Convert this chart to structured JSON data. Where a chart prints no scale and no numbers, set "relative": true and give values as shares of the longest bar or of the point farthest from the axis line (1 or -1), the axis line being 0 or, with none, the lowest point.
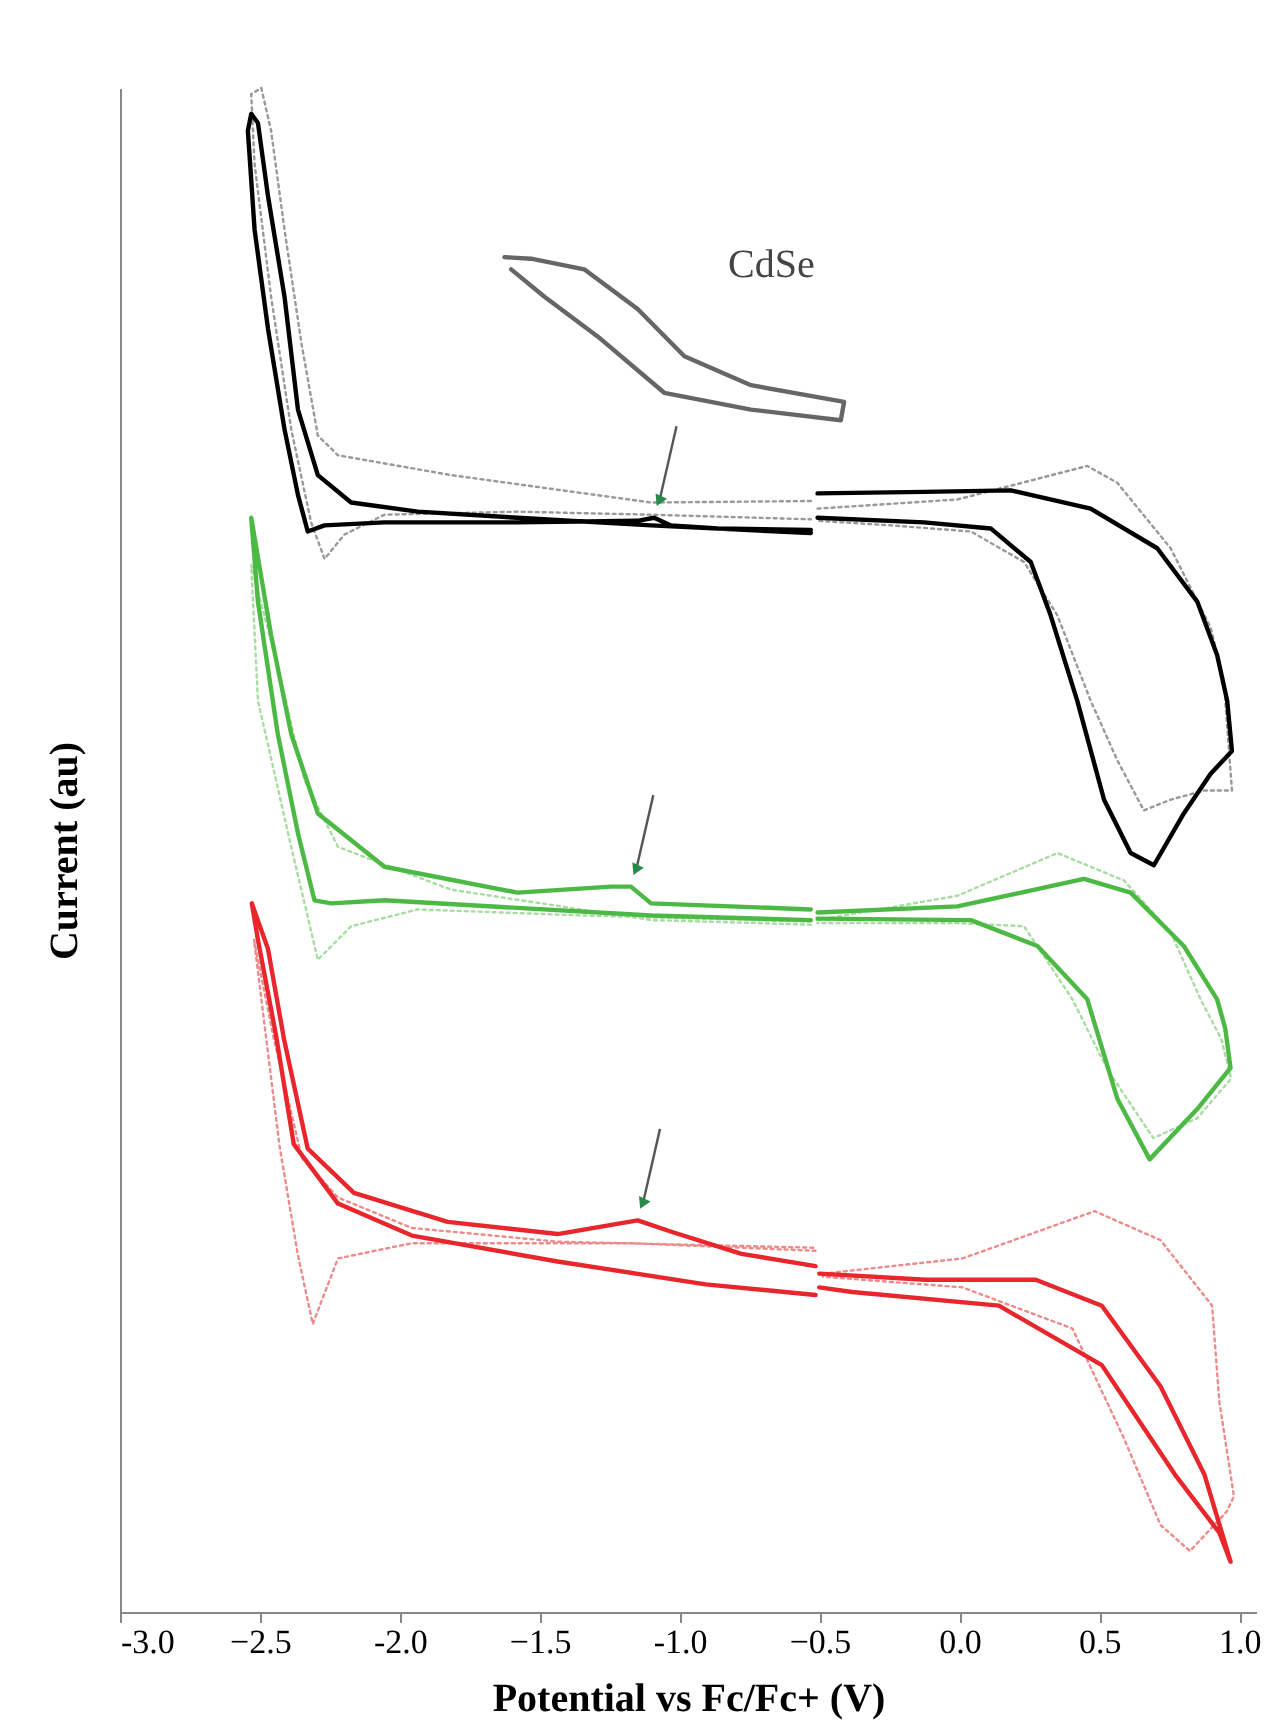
{
  "chart_data": {
    "type": "line",
    "relative": true,
    "xlabel": "Potential vs Fc/Fc+ (V)",
    "ylabel": "Current (au)",
    "xlim": [
      -3.0,
      1.06
    ],
    "xticks": [
      {
        "value": -3,
        "label": "-3.0"
      },
      -2.5,
      {
        "value": -2,
        "label": "-2.0"
      },
      -1.5,
      {
        "value": -1,
        "label": "-1.0"
      },
      -0.5,
      {
        "value": 0,
        "label": "0.0"
      },
      0.5,
      {
        "value": 1,
        "label": "1.0"
      }
    ],
    "grid": false,
    "legend": false,
    "marker": "none",
    "annotations": [
      "CdSe"
    ],
    "series": [
      {
        "color": "#999999",
        "line_style": "dotted",
        "x": [
          -0.531,
          -1.102,
          -1.817,
          -2.221,
          -2.293,
          -2.352,
          -2.412,
          -2.46,
          -2.495,
          -2.531,
          -2.519,
          -2.46,
          -2.388,
          -2.317,
          -2.269,
          -2.198,
          -2.055,
          -1.579,
          -1.102,
          -0.531,
          -0.52,
          -0.507,
          -0.007,
          0.457,
          0.564,
          0.755,
          0.898,
          0.945,
          0.974,
          0.874,
          0.755,
          0.659,
          0.564,
          0.469,
          0.35,
          0.231,
          0.041,
          -0.245,
          -0.507
        ],
        "values": [
          0.729,
          0.728,
          0.746,
          0.759,
          0.772,
          0.833,
          0.907,
          0.972,
          1,
          0.996,
          0.95,
          0.863,
          0.776,
          0.715,
          0.691,
          0.707,
          0.72,
          0.722,
          0.72,
          0.717,
          null,
          0.724,
          0.73,
          0.752,
          0.741,
          0.698,
          0.646,
          0.611,
          0.539,
          0.539,
          0.533,
          0.526,
          0.559,
          0.598,
          0.654,
          0.689,
          0.709,
          0.713,
          0.716
        ]
      },
      {
        "color": "#000000",
        "line_style": "solid",
        "x": [
          -0.531,
          -1.102,
          -1.579,
          -1.936,
          -2.174,
          -2.293,
          -2.364,
          -2.412,
          -2.471,
          -2.507,
          -2.531,
          -2.543,
          -2.519,
          -2.471,
          -2.412,
          -2.364,
          -2.329,
          -2.269,
          -2.055,
          -1.579,
          -1.15,
          -1.091,
          -1.031,
          -0.864,
          -0.531,
          -0.52,
          -0.507,
          -0.126,
          0.184,
          0.469,
          0.707,
          0.85,
          0.921,
          0.957,
          0.974,
          0.898,
          0.802,
          0.695,
          0.612,
          0.517,
          0.421,
          0.326,
          0.255,
          0.112,
          -0.126,
          -0.507
        ],
        "values": [
          0.708,
          0.713,
          0.718,
          0.722,
          0.728,
          0.746,
          0.789,
          0.863,
          0.929,
          0.977,
          0.983,
          0.972,
          0.907,
          0.842,
          0.776,
          0.733,
          0.709,
          0.713,
          0.715,
          0.715,
          0.716,
          0.718,
          0.713,
          0.711,
          0.71,
          null,
          0.734,
          0.735,
          0.736,
          0.724,
          0.698,
          0.663,
          0.628,
          0.598,
          0.565,
          0.55,
          0.524,
          0.49,
          0.498,
          0.533,
          0.598,
          0.654,
          0.689,
          0.711,
          0.715,
          0.718
        ]
      },
      {
        "color": "#666666",
        "line_style": "solid",
        "x": [
          -1.626,
          -1.531,
          -1.341,
          -1.15,
          -0.983,
          -0.745,
          -0.412,
          -0.424,
          -0.745,
          -1.055,
          -1.293,
          -1.483,
          -1.602
        ],
        "values": [
          0.889,
          0.888,
          0.881,
          0.855,
          0.824,
          0.805,
          0.794,
          0.782,
          0.789,
          0.8,
          0.837,
          0.863,
          0.881
        ]
      },
      {
        "color": "#a8dca2",
        "line_style": "dotted",
        "x": [
          -0.531,
          -1.102,
          -1.817,
          -2.221,
          -2.341,
          -2.436,
          -2.531,
          -2.507,
          -2.388,
          -2.293,
          -2.174,
          -1.936,
          -1.341,
          -0.531,
          -0.52,
          -0.507,
          -0.007,
          0.35,
          0.588,
          0.755,
          0.862,
          0.936,
          0.971,
          0.85,
          0.693,
          0.529,
          0.404,
          0.231,
          -0.007,
          -0.507
        ],
        "values": [
          0.451,
          0.454,
          0.474,
          0.502,
          0.546,
          0.62,
          0.687,
          0.598,
          0.502,
          0.428,
          0.45,
          0.461,
          0.457,
          0.453,
          null,
          0.454,
          0.47,
          0.498,
          0.48,
          0.446,
          0.402,
          0.376,
          0.35,
          0.324,
          0.311,
          0.356,
          0.402,
          0.45,
          0.452,
          0.452
        ]
      },
      {
        "color": "#4cb944",
        "line_style": "solid",
        "x": [
          -0.531,
          -1.102,
          -1.174,
          -1.245,
          -1.579,
          -2.055,
          -2.293,
          -2.388,
          -2.46,
          -2.531,
          -2.507,
          -2.436,
          -2.364,
          -2.305,
          -2.245,
          -2.055,
          -1.579,
          -1.102,
          -0.531,
          -0.52,
          -0.507,
          -0.007,
          0.445,
          0.612,
          0.802,
          0.921,
          0.95,
          0.969,
          0.85,
          0.68,
          0.564,
          0.457,
          0.279,
          0.041,
          -0.507
        ],
        "values": [
          0.461,
          0.465,
          0.476,
          0.476,
          0.472,
          0.489,
          0.524,
          0.576,
          0.641,
          0.718,
          0.663,
          0.576,
          0.511,
          0.467,
          0.465,
          0.467,
          0.462,
          0.457,
          0.454,
          null,
          0.459,
          0.463,
          0.481,
          0.472,
          0.437,
          0.402,
          0.383,
          0.357,
          0.33,
          0.297,
          0.337,
          0.402,
          0.437,
          0.454,
          0.455
        ]
      },
      {
        "color": "#ee8a8a",
        "line_style": "dotted",
        "x": [
          -0.514,
          -1.171,
          -1.957,
          -2.221,
          -2.311,
          -2.364,
          -2.43,
          -2.521,
          -2.45,
          -2.35,
          -2.221,
          -1.957,
          -1.436,
          -0.514,
          -0.5,
          -0.488,
          0.011,
          0.483,
          0.719,
          0.903,
          0.929,
          0.981,
          0.956,
          0.824,
          0.719,
          0.588,
          0.404,
          0.011,
          -0.488
        ],
        "values": [
          0.237,
          0.242,
          0.242,
          0.232,
          0.189,
          0.234,
          0.306,
          0.441,
          0.376,
          0.298,
          0.272,
          0.252,
          0.243,
          0.239,
          null,
          0.222,
          0.232,
          0.263,
          0.244,
          0.201,
          0.138,
          0.076,
          0.066,
          0.04,
          0.057,
          0.114,
          0.186,
          0.213,
          0.22
        ]
      },
      {
        "color": "#e8262b",
        "line_style": "solid",
        "x": [
          -0.514,
          -0.907,
          -1.436,
          -1.957,
          -2.221,
          -2.379,
          -2.443,
          -2.507,
          -2.529,
          -2.471,
          -2.414,
          -2.329,
          -2.164,
          -1.829,
          -1.436,
          -1.15,
          -1.021,
          -0.779,
          -0.514,
          -0.507,
          -0.501,
          -0.121,
          0.273,
          0.509,
          0.719,
          0.876,
          0.969,
          0.929,
          0.771,
          0.509,
          0.141,
          -0.383,
          -0.501
        ],
        "values": [
          0.208,
          0.215,
          0.23,
          0.247,
          0.268,
          0.307,
          0.379,
          0.441,
          0.465,
          0.435,
          0.376,
          0.304,
          0.275,
          0.256,
          0.248,
          0.257,
          0.249,
          0.235,
          0.227,
          null,
          0.222,
          0.218,
          0.218,
          0.201,
          0.148,
          0.09,
          0.033,
          0.052,
          0.09,
          0.162,
          0.201,
          0.21,
          0.213
        ]
      }
    ]
  }
}
